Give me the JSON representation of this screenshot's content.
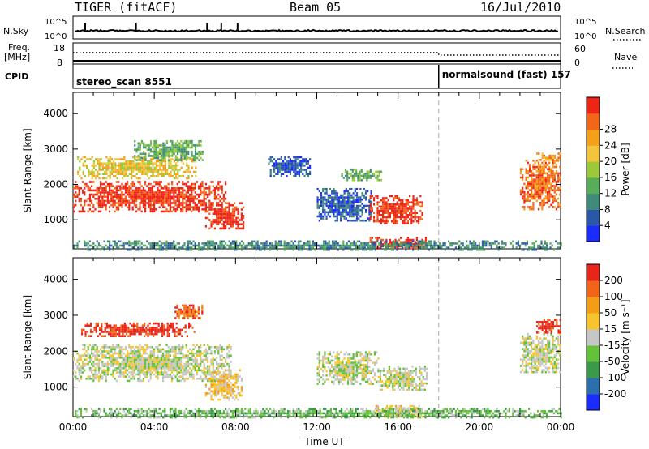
{
  "header": {
    "title": "TIGER (fitACF)",
    "beam": "Beam 05",
    "date": "16/Jul/2010"
  },
  "status_panels": {
    "nsky_label": "N.Sky",
    "nsky_ticks": [
      "10^5",
      "10^0"
    ],
    "nsearch_label": "N.Search",
    "nsearch_ticks": [
      "10^5",
      "10^0"
    ],
    "freq_label": "Freq.",
    "freq_unit": "[MHz]",
    "freq_ticks": [
      "18",
      "8"
    ],
    "nave_ticks": [
      "60",
      "0"
    ],
    "nave_label": "Nave",
    "cpid_label": "CPID",
    "cpid_segments": [
      {
        "name": "stereo_scan 8551",
        "start_hour": 0,
        "end_hour": 18
      },
      {
        "name": "normalsound (fast) 157",
        "start_hour": 18,
        "end_hour": 24
      }
    ]
  },
  "chart_data": [
    {
      "type": "heatmap",
      "name": "power-panel",
      "ylabel": "Slant Range [km]",
      "xlim_hours": [
        0,
        24
      ],
      "ylim_km": [
        180,
        4600
      ],
      "ytick_labels": [
        "1000",
        "2000",
        "3000",
        "4000"
      ],
      "ytick_values": [
        1000,
        2000,
        3000,
        4000
      ],
      "colorbar": {
        "label": "Power [dB]",
        "tick_labels": [
          "4",
          "8",
          "12",
          "16",
          "20",
          "24",
          "28"
        ],
        "colors": [
          "#1a2cff",
          "#2b57a8",
          "#3f8a78",
          "#58ad5a",
          "#9bc93a",
          "#f2c53c",
          "#f4a018",
          "#f2661a",
          "#ee2417"
        ]
      },
      "regions": [
        {
          "t0": 0.0,
          "t1": 7.5,
          "r0": 1250,
          "r1": 2100,
          "level": 8
        },
        {
          "t0": 6.5,
          "t1": 8.4,
          "r0": 750,
          "r1": 1500,
          "level": 8
        },
        {
          "t0": 0.2,
          "t1": 6.0,
          "r0": 2200,
          "r1": 2800,
          "level": 5
        },
        {
          "t0": 3.0,
          "t1": 6.4,
          "r0": 2700,
          "r1": 3250,
          "level": 3
        },
        {
          "t0": 9.6,
          "t1": 11.7,
          "r0": 2250,
          "r1": 2800,
          "level": 1
        },
        {
          "t0": 13.2,
          "t1": 15.2,
          "r0": 2100,
          "r1": 2450,
          "level": 3
        },
        {
          "t0": 12.0,
          "t1": 14.7,
          "r0": 1000,
          "r1": 1900,
          "level": 1
        },
        {
          "t0": 14.6,
          "t1": 17.2,
          "r0": 900,
          "r1": 1700,
          "level": 8
        },
        {
          "t0": 14.6,
          "t1": 17.4,
          "r0": 180,
          "r1": 520,
          "level": 8
        },
        {
          "t0": 22.0,
          "t1": 24.0,
          "r0": 1300,
          "r1": 2700,
          "level": 7
        },
        {
          "t0": 22.8,
          "t1": 24.0,
          "r0": 2700,
          "r1": 2900,
          "level": 6
        },
        {
          "t0": 0.0,
          "t1": 24.0,
          "r0": 180,
          "r1": 420,
          "level": 2
        }
      ]
    },
    {
      "type": "heatmap",
      "name": "velocity-panel",
      "ylabel": "Slant Range [km]",
      "xlabel": "Time UT",
      "xlim_hours": [
        0,
        24
      ],
      "ylim_km": [
        180,
        4600
      ],
      "xtick_labels": [
        "00:00",
        "04:00",
        "08:00",
        "12:00",
        "16:00",
        "20:00",
        "00:00"
      ],
      "xtick_values": [
        0,
        4,
        8,
        12,
        16,
        20,
        24
      ],
      "ytick_labels": [
        "1000",
        "2000",
        "3000",
        "4000"
      ],
      "ytick_values": [
        1000,
        2000,
        3000,
        4000
      ],
      "colorbar": {
        "label": "Velocity [m s⁻¹]",
        "tick_labels": [
          "200",
          "100",
          "50",
          "15",
          "-15",
          "-50",
          "-100",
          "-200"
        ],
        "colors": [
          "#1a2cff",
          "#2d6fae",
          "#3a9a4a",
          "#63c23a",
          "#c6c6c6",
          "#f7c52b",
          "#f39d16",
          "#f0651a",
          "#e9241a"
        ]
      },
      "regions": [
        {
          "t0": 0.0,
          "t1": 7.8,
          "r0": 1200,
          "r1": 2200,
          "level": 4
        },
        {
          "t0": 6.5,
          "t1": 8.3,
          "r0": 650,
          "r1": 1500,
          "level": 5
        },
        {
          "t0": 0.4,
          "t1": 6.0,
          "r0": 2400,
          "r1": 2800,
          "level": 8
        },
        {
          "t0": 5.0,
          "t1": 6.4,
          "r0": 2900,
          "r1": 3300,
          "level": 7
        },
        {
          "t0": 12.0,
          "t1": 15.0,
          "r0": 1100,
          "r1": 2000,
          "level": 4
        },
        {
          "t0": 15.0,
          "t1": 17.4,
          "r0": 900,
          "r1": 1600,
          "level": 4
        },
        {
          "t0": 14.8,
          "t1": 17.2,
          "r0": 180,
          "r1": 500,
          "level": 5
        },
        {
          "t0": 22.0,
          "t1": 24.0,
          "r0": 1400,
          "r1": 2500,
          "level": 4
        },
        {
          "t0": 22.8,
          "t1": 24.0,
          "r0": 2500,
          "r1": 2900,
          "level": 8
        },
        {
          "t0": 0.0,
          "t1": 24.0,
          "r0": 180,
          "r1": 420,
          "level": 3
        }
      ]
    }
  ],
  "axis_labels": {
    "time": "Time UT"
  }
}
